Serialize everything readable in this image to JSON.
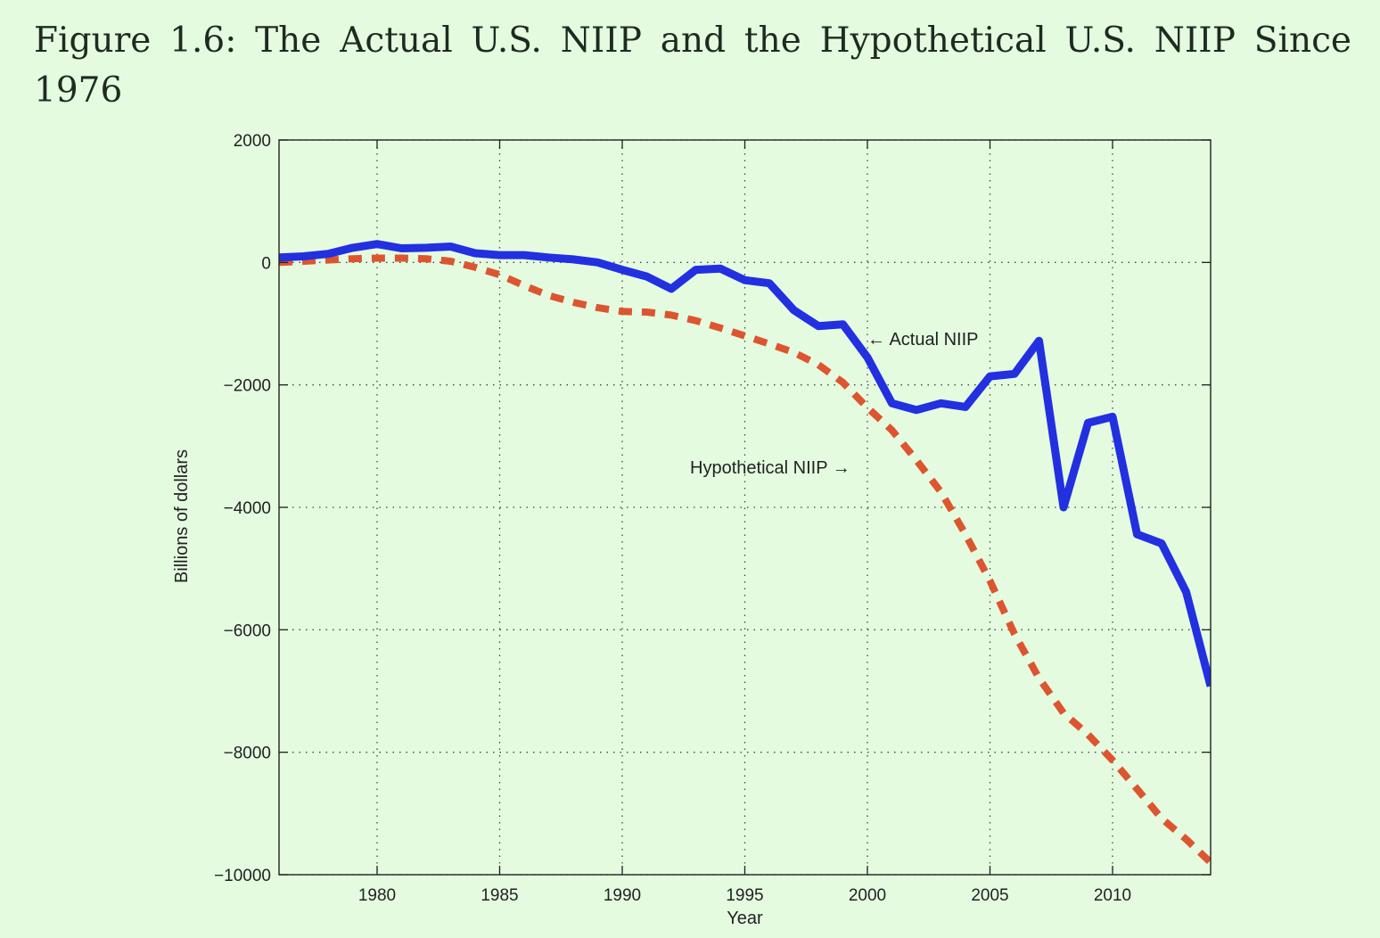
{
  "figure": {
    "title": "Figure 1.6: The Actual U.S. NIIP and the Hypothetical U.S. NIIP Since 1976"
  },
  "colors": {
    "background": "#e4fbe0",
    "actual": "#2230e0",
    "hypothetical": "#dd5530",
    "axis": "#222222",
    "grid": "#444444"
  },
  "chart_data": {
    "type": "line",
    "title": "",
    "xlabel": "Year",
    "ylabel": "Billions of dollars",
    "xlim": [
      1976,
      2014
    ],
    "ylim": [
      -10000,
      2000
    ],
    "grid": true,
    "xticks": [
      1980,
      1985,
      1990,
      1995,
      2000,
      2005,
      2010
    ],
    "yticks": [
      2000,
      0,
      -2000,
      -4000,
      -6000,
      -8000,
      -10000
    ],
    "ytick_labels": [
      "2000",
      "0",
      "−2000",
      "−4000",
      "−6000",
      "−8000",
      "−10000"
    ],
    "x": [
      1976,
      1977,
      1978,
      1979,
      1980,
      1981,
      1982,
      1983,
      1984,
      1985,
      1986,
      1987,
      1988,
      1989,
      1990,
      1991,
      1992,
      1993,
      1994,
      1995,
      1996,
      1997,
      1998,
      1999,
      2000,
      2001,
      2002,
      2003,
      2004,
      2005,
      2006,
      2007,
      2008,
      2009,
      2010,
      2011,
      2012,
      2013,
      2014
    ],
    "series": [
      {
        "name": "Actual NIIP",
        "style": "solid",
        "values": [
          80,
          100,
          140,
          240,
          300,
          230,
          240,
          260,
          150,
          120,
          120,
          80,
          50,
          0,
          -120,
          -230,
          -430,
          -120,
          -100,
          -290,
          -340,
          -780,
          -1040,
          -1010,
          -1550,
          -2300,
          -2410,
          -2300,
          -2360,
          -1860,
          -1820,
          -1280,
          -4000,
          -2620,
          -2520,
          -4440,
          -4590,
          -5380,
          -6920
        ]
      },
      {
        "name": "Hypothetical NIIP",
        "style": "dashed",
        "values": [
          0,
          20,
          40,
          60,
          70,
          70,
          60,
          20,
          -80,
          -200,
          -380,
          -540,
          -650,
          -740,
          -800,
          -810,
          -860,
          -950,
          -1070,
          -1200,
          -1330,
          -1470,
          -1670,
          -1960,
          -2370,
          -2740,
          -3230,
          -3750,
          -4440,
          -5200,
          -6070,
          -6790,
          -7360,
          -7710,
          -8130,
          -8600,
          -9080,
          -9420,
          -9800
        ]
      }
    ],
    "annotations": [
      {
        "text": "← Actual NIIP",
        "x": 2000,
        "y": -1350,
        "anchor": "start",
        "series": 0
      },
      {
        "text": "Hypothetical NIIP →",
        "x": 1999.3,
        "y": -3450,
        "anchor": "end",
        "series": 1
      }
    ]
  }
}
